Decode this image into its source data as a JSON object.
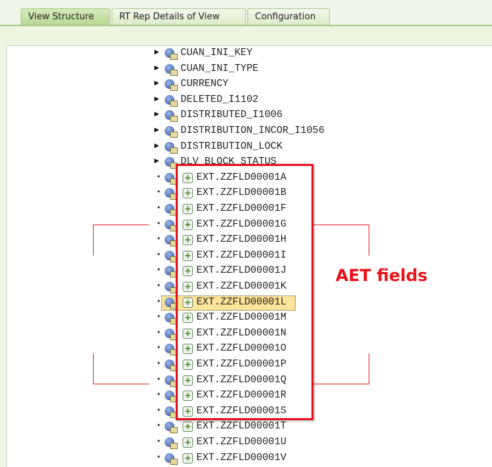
{
  "tabs": [
    {
      "label": "View Structure",
      "active": true
    },
    {
      "label": "RT Rep Details of View",
      "active": false
    },
    {
      "label": "Configuration",
      "active": false
    }
  ],
  "tree": {
    "structure_items": [
      "CUAN_INI_KEY",
      "CUAN_INI_TYPE",
      "CURRENCY",
      "DELETED_I1102",
      "DISTRIBUTED_I1006",
      "DISTRIBUTION_INCOR_I1056",
      "DISTRIBUTION_LOCK",
      "DLV_BLOCK_STATUS"
    ],
    "ext_items": [
      "EXT.ZZFLD00001A",
      "EXT.ZZFLD00001B",
      "EXT.ZZFLD00001F",
      "EXT.ZZFLD00001G",
      "EXT.ZZFLD00001H",
      "EXT.ZZFLD00001I",
      "EXT.ZZFLD00001J",
      "EXT.ZZFLD00001K",
      "EXT.ZZFLD00001L",
      "EXT.ZZFLD00001M",
      "EXT.ZZFLD00001N",
      "EXT.ZZFLD00001O",
      "EXT.ZZFLD00001P",
      "EXT.ZZFLD00001Q",
      "EXT.ZZFLD00001R",
      "EXT.ZZFLD00001S",
      "EXT.ZZFLD00001T",
      "EXT.ZZFLD00001U",
      "EXT.ZZFLD00001V"
    ],
    "selected": "EXT.ZZFLD00001L"
  },
  "annotation": {
    "label": "AET fields",
    "color": "#e8121a"
  }
}
